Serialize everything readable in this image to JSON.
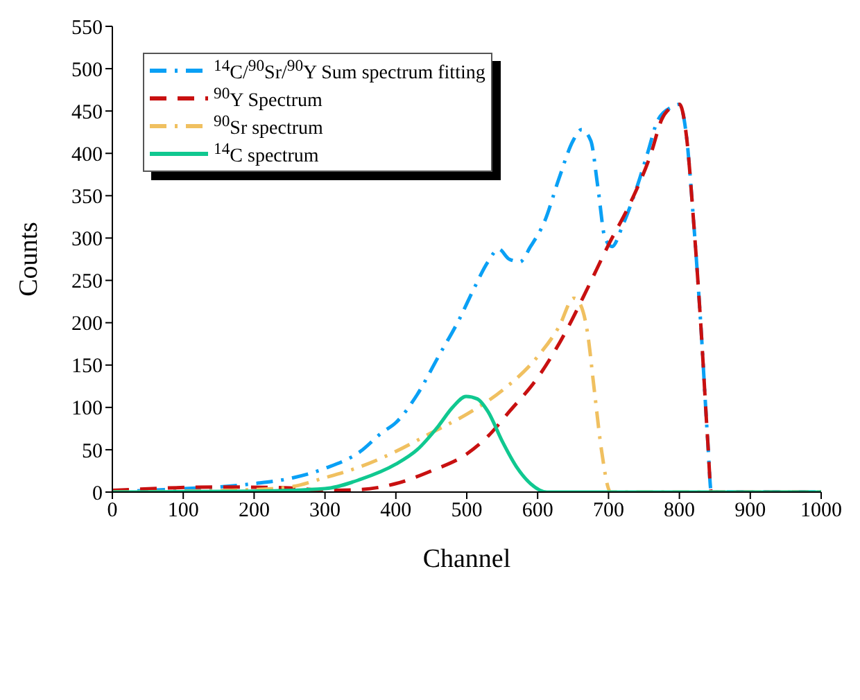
{
  "chart_data": {
    "type": "line",
    "xlabel": "Channel",
    "ylabel": "Counts",
    "xlim": [
      0,
      1000
    ],
    "ylim": [
      0,
      550
    ],
    "xticks": [
      0,
      100,
      200,
      300,
      400,
      500,
      600,
      700,
      800,
      900,
      1000
    ],
    "yticks": [
      0,
      50,
      100,
      150,
      200,
      250,
      300,
      350,
      400,
      450,
      500,
      550
    ],
    "grid": false,
    "legend": "top left",
    "marker": "none",
    "series": [
      {
        "name": "$^{14}$C/$^{90}$Sr/$^{90}$Y Sum spectrum fitting",
        "color": "#0aa0f5",
        "line_style": "dashdot",
        "x": [
          0,
          50,
          100,
          150,
          200,
          250,
          300,
          350,
          380,
          400,
          430,
          460,
          490,
          510,
          530,
          545,
          560,
          575,
          590,
          610,
          630,
          650,
          662,
          675,
          685,
          695,
          705,
          720,
          740,
          755,
          770,
          790,
          800,
          810,
          820,
          830,
          840,
          845,
          900,
          1000
        ],
        "values": [
          0,
          2,
          4,
          6,
          10,
          16,
          28,
          48,
          70,
          82,
          115,
          160,
          205,
          240,
          272,
          287,
          275,
          272,
          290,
          320,
          370,
          415,
          428,
          415,
          360,
          300,
          290,
          315,
          360,
          400,
          440,
          455,
          458,
          420,
          320,
          200,
          60,
          0,
          0,
          0
        ]
      },
      {
        "name": "$^{90}$Y Spectrum",
        "color": "#c81010",
        "line_style": "dashed",
        "x": [
          0,
          150,
          250,
          300,
          350,
          400,
          450,
          500,
          530,
          560,
          600,
          640,
          670,
          700,
          730,
          760,
          775,
          790,
          800,
          810,
          820,
          830,
          840,
          845,
          1000
        ],
        "values": [
          2,
          6,
          5,
          2,
          3,
          10,
          25,
          45,
          66,
          95,
          135,
          190,
          240,
          292,
          340,
          400,
          440,
          455,
          458,
          420,
          320,
          200,
          60,
          0,
          0
        ]
      },
      {
        "name": "$^{90}$Sr spectrum",
        "color": "#f0c060",
        "line_style": "dashdot",
        "x": [
          0,
          100,
          200,
          250,
          300,
          350,
          400,
          450,
          500,
          550,
          600,
          630,
          651,
          660,
          670,
          680,
          690,
          703,
          1000
        ],
        "values": [
          0,
          1,
          3,
          6,
          17,
          30,
          48,
          70,
          92,
          120,
          160,
          195,
          229,
          222,
          190,
          120,
          50,
          0,
          0
        ]
      },
      {
        "name": "$^{14}$C spectrum",
        "color": "#10c890",
        "line_style": "solid",
        "x": [
          0,
          200,
          300,
          350,
          400,
          430,
          460,
          480,
          499,
          515,
          530,
          550,
          570,
          590,
          613,
          1000
        ],
        "values": [
          0,
          1,
          4,
          15,
          33,
          50,
          78,
          100,
          113,
          110,
          95,
          60,
          30,
          10,
          0,
          0
        ]
      }
    ]
  }
}
